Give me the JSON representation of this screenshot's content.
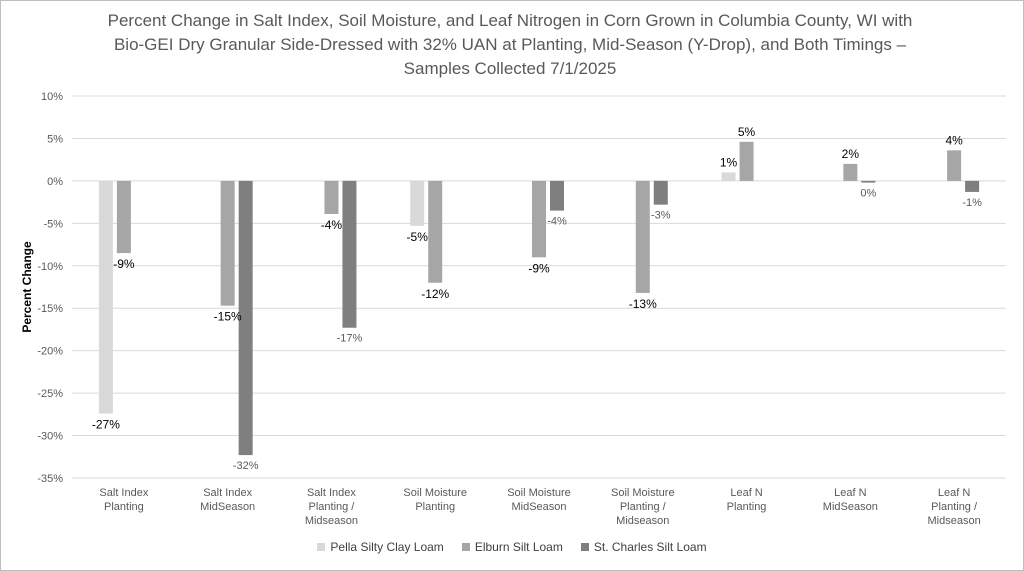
{
  "chart_data": {
    "type": "bar",
    "title_lines": [
      "Percent Change in Salt Index, Soil Moisture, and Leaf Nitrogen in Corn Grown in Columbia County, WI with",
      "Bio-GEI Dry Granular Side-Dressed with 32% UAN at Planting, Mid-Season (Y-Drop), and Both Timings –",
      "Samples Collected 7/1/2025"
    ],
    "ylabel": "Percent Change",
    "ylim": [
      -35,
      10
    ],
    "ytick_step": 5,
    "yticks": [
      "10%",
      "5%",
      "0%",
      "-5%",
      "-10%",
      "-15%",
      "-20%",
      "-25%",
      "-30%",
      "-35%"
    ],
    "grid": true,
    "legend_position": "bottom",
    "categories": [
      [
        "Salt Index",
        "Planting"
      ],
      [
        "Salt Index",
        "MidSeason"
      ],
      [
        "Salt Index",
        "Planting /",
        "Midseason"
      ],
      [
        "Soil Moisture",
        "Planting"
      ],
      [
        "Soil Moisture",
        "MidSeason"
      ],
      [
        "Soil Moisture",
        "Planting /",
        "Midseason"
      ],
      [
        "Leaf N",
        "Planting"
      ],
      [
        "Leaf N",
        "MidSeason"
      ],
      [
        "Leaf N",
        "Planting /",
        "Midseason"
      ]
    ],
    "series": [
      {
        "name": "Pella Silty Clay Loam",
        "color": "#d9d9d9",
        "values": [
          -27.4,
          null,
          null,
          -5.3,
          null,
          null,
          1.0,
          null,
          null
        ],
        "labels": [
          "-27%",
          "",
          "",
          "-5%",
          "",
          "",
          "1%",
          "",
          ""
        ]
      },
      {
        "name": "Elburn Silt Loam",
        "color": "#a6a6a6",
        "values": [
          -8.5,
          -14.7,
          -3.9,
          -12.0,
          -9.0,
          -13.2,
          4.6,
          2.0,
          3.6
        ],
        "labels": [
          "-9%",
          "-15%",
          "-4%",
          "-12%",
          "-9%",
          "-13%",
          "5%",
          "2%",
          "4%"
        ]
      },
      {
        "name": "St. Charles Silt Loam",
        "color": "#7f7f7f",
        "values": [
          null,
          -32.3,
          -17.3,
          null,
          -3.5,
          -2.8,
          null,
          -0.2,
          -1.3
        ],
        "labels": [
          "",
          "-32%",
          "-17%",
          "",
          "-4%",
          "-3%",
          "",
          "0%",
          "-1%"
        ]
      }
    ]
  }
}
